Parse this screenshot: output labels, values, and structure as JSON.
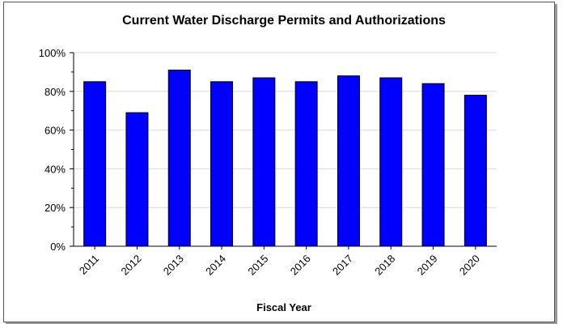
{
  "chart_data": {
    "type": "bar",
    "title": "Current Water Discharge Permits and Authorizations",
    "xlabel": "Fiscal Year",
    "ylabel": "",
    "categories": [
      "2011",
      "2012",
      "2013",
      "2014",
      "2015",
      "2016",
      "2017",
      "2018",
      "2019",
      "2020"
    ],
    "values": [
      85,
      69,
      91,
      85,
      87,
      85,
      88,
      87,
      84,
      78
    ],
    "ylim": [
      0,
      100
    ],
    "yticks": [
      "0%",
      "20%",
      "40%",
      "60%",
      "80%",
      "100%"
    ],
    "grid": true,
    "legend": "none",
    "bar_color": "#0000ff",
    "bar_outline_color": "#000000",
    "grid_color": "#d9d9d9"
  }
}
